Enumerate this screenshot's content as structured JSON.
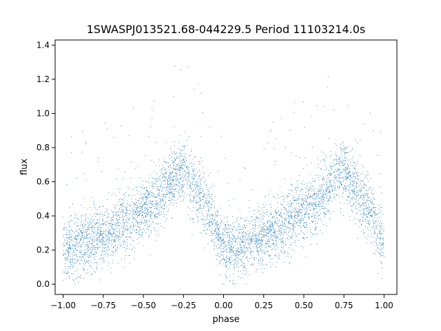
{
  "chart_data": {
    "type": "scatter",
    "title": "1SWASPJ013521.68-044229.5 Period 11103214.0s",
    "xlabel": "phase",
    "ylabel": "flux",
    "xlim": [
      -1.05,
      1.08
    ],
    "ylim": [
      -0.06,
      1.43
    ],
    "grid": false,
    "x_ticks": [
      -1.0,
      -0.75,
      -0.5,
      -0.25,
      0.0,
      0.25,
      0.5,
      0.75,
      1.0
    ],
    "x_tick_labels": [
      "−1.00",
      "−0.75",
      "−0.50",
      "−0.25",
      "0.00",
      "0.25",
      "0.50",
      "0.75",
      "1.00"
    ],
    "y_ticks": [
      0.0,
      0.2,
      0.4,
      0.6,
      0.8,
      1.0,
      1.2,
      1.4
    ],
    "y_tick_labels": [
      "0.0",
      "0.2",
      "0.4",
      "0.6",
      "0.8",
      "1.0",
      "1.2",
      "1.4"
    ],
    "marker_color": "#1f77b4",
    "series": [
      {
        "x_range": [
          -1.0,
          1.0
        ],
        "folded_period_phase": 1.0,
        "profile": [
          {
            "phase": 0.0,
            "flux": 0.22
          },
          {
            "phase": 0.1,
            "flux": 0.22
          },
          {
            "phase": 0.2,
            "flux": 0.27
          },
          {
            "phase": 0.3,
            "flux": 0.3
          },
          {
            "phase": 0.4,
            "flux": 0.37
          },
          {
            "phase": 0.5,
            "flux": 0.44
          },
          {
            "phase": 0.6,
            "flux": 0.5
          },
          {
            "phase": 0.7,
            "flux": 0.63
          },
          {
            "phase": 0.75,
            "flux": 0.67
          },
          {
            "phase": 0.8,
            "flux": 0.58
          },
          {
            "phase": 0.9,
            "flux": 0.45
          },
          {
            "phase": 1.0,
            "flux": 0.22
          }
        ]
      }
    ]
  }
}
